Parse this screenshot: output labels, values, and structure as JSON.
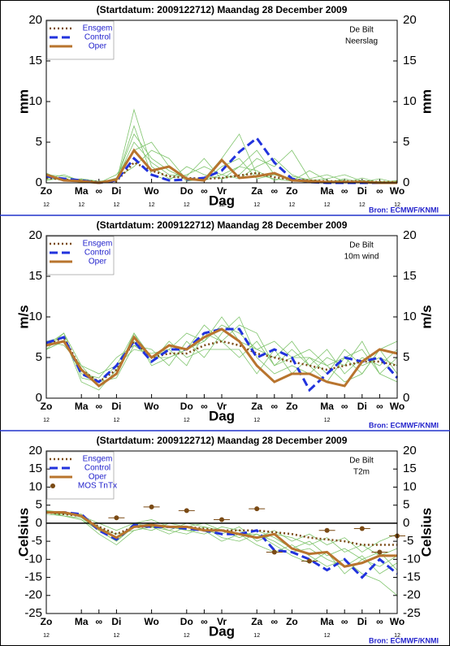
{
  "chart_data": [
    {
      "type": "line",
      "title": "(Startdatum: 2009122712)   Maandag   28 December  2009",
      "location": "De Bilt",
      "subtitle": "Neerslag",
      "ylabel": "mm",
      "xlabel": "Dag",
      "source": "Bron: ECMWF/KNMI",
      "ylim": [
        0,
        20
      ],
      "yticks": [
        0,
        5,
        10,
        15,
        20
      ],
      "xlim": [
        0,
        240
      ],
      "xticks": [
        {
          "value": 0,
          "label": "Zo"
        },
        {
          "value": 24,
          "label": "Ma"
        },
        {
          "value": 36,
          "label": "∞"
        },
        {
          "value": 48,
          "label": "Di"
        },
        {
          "value": 72,
          "label": "Wo"
        },
        {
          "value": 96,
          "label": "Do"
        },
        {
          "value": 108,
          "label": "∞"
        },
        {
          "value": 120,
          "label": "Vr"
        },
        {
          "value": 144,
          "label": "Za"
        },
        {
          "value": 156,
          "label": "∞"
        },
        {
          "value": 168,
          "label": "Zo"
        },
        {
          "value": 192,
          "label": "Ma"
        },
        {
          "value": 204,
          "label": "∞"
        },
        {
          "value": 216,
          "label": "Di"
        },
        {
          "value": 228,
          "label": "∞"
        },
        {
          "value": 240,
          "label": "Wo"
        }
      ],
      "xhourticks": [
        {
          "value": 0,
          "label": "12"
        },
        {
          "value": 24,
          "label": "12"
        },
        {
          "value": 48,
          "label": "12"
        },
        {
          "value": 72,
          "label": "12"
        },
        {
          "value": 96,
          "label": "12"
        },
        {
          "value": 120,
          "label": "12"
        },
        {
          "value": 144,
          "label": "12"
        },
        {
          "value": 168,
          "label": "12"
        },
        {
          "value": 192,
          "label": "12"
        },
        {
          "value": 216,
          "label": "12"
        },
        {
          "value": 240,
          "label": "12"
        }
      ],
      "x": [
        0,
        12,
        24,
        36,
        48,
        60,
        72,
        84,
        96,
        108,
        120,
        132,
        144,
        156,
        168,
        180,
        192,
        204,
        216,
        228,
        240
      ],
      "members": {
        "color": "#7fc46c",
        "values": [
          [
            0.5,
            1,
            0.2,
            0,
            0.5,
            6,
            3,
            1.5,
            0.5,
            0.3,
            1,
            2,
            4,
            1,
            0.5,
            0.3,
            0.5,
            1,
            0.2,
            0.1,
            0
          ],
          [
            1.2,
            0.3,
            0.5,
            0.2,
            0.2,
            9,
            2,
            0.5,
            1,
            2,
            1,
            0.5,
            2,
            3,
            1,
            0.2,
            0,
            0.5,
            0,
            0.2,
            0.1
          ],
          [
            0.3,
            0.6,
            0,
            0,
            1,
            4,
            5,
            2,
            0.2,
            0.5,
            3,
            6,
            1,
            0.5,
            0.2,
            1.5,
            0.3,
            0,
            0.6,
            0,
            0.3
          ],
          [
            0.8,
            0.2,
            0.4,
            0.1,
            0.3,
            7,
            1,
            0.3,
            2,
            1,
            0.5,
            1,
            3,
            2,
            4,
            0.5,
            1,
            0.2,
            0.1,
            0.5,
            0
          ],
          [
            0.4,
            0.5,
            0.1,
            0,
            0.6,
            2,
            4,
            3,
            0.4,
            0.2,
            2,
            3,
            0.5,
            1,
            0.3,
            0,
            0.2,
            0.3,
            0,
            0,
            0.2
          ],
          [
            1,
            0.8,
            0.3,
            0.2,
            0.4,
            5,
            2.5,
            1,
            0.8,
            3,
            0.4,
            2,
            1.5,
            0.3,
            0.8,
            0.4,
            0,
            0.1,
            0.3,
            0.1,
            0
          ]
        ]
      },
      "series": [
        {
          "name": "Ensgem",
          "color": "#7a4a14",
          "style": "dotted",
          "values": [
            0.6,
            0.4,
            0.3,
            0.1,
            0.2,
            2.5,
            1.5,
            0.8,
            0.6,
            0.5,
            0.6,
            0.9,
            1.2,
            0.7,
            0.4,
            0.3,
            0.2,
            0.2,
            0.2,
            0.1,
            0.1
          ]
        },
        {
          "name": "Control",
          "color": "#2233dd",
          "style": "dashed",
          "values": [
            0.8,
            0.5,
            0.3,
            0,
            0.3,
            3.0,
            1.0,
            0.3,
            0.4,
            0.6,
            1.5,
            3.8,
            5.5,
            2.5,
            0.5,
            0.1,
            0,
            0,
            0,
            0,
            0
          ]
        },
        {
          "name": "Oper",
          "color": "#b8742e",
          "style": "solid",
          "values": [
            1.0,
            0.3,
            0.2,
            0,
            0.4,
            4.0,
            1.5,
            2.0,
            0.5,
            0.3,
            2.8,
            0.6,
            0.8,
            1.2,
            0.3,
            0.2,
            0.1,
            0.1,
            0.1,
            0,
            0
          ]
        }
      ]
    },
    {
      "type": "line",
      "title": "(Startdatum: 2009122712)   Maandag   28 December  2009",
      "location": "De Bilt",
      "subtitle": "10m wind",
      "ylabel": "m/s",
      "xlabel": "Dag",
      "source": "Bron: ECMWF/KNMI",
      "ylim": [
        0,
        20
      ],
      "yticks": [
        0,
        5,
        10,
        15,
        20
      ],
      "xlim": [
        0,
        240
      ],
      "xticks": [
        {
          "value": 0,
          "label": "Zo"
        },
        {
          "value": 24,
          "label": "Ma"
        },
        {
          "value": 36,
          "label": "∞"
        },
        {
          "value": 48,
          "label": "Di"
        },
        {
          "value": 72,
          "label": "Wo"
        },
        {
          "value": 96,
          "label": "Do"
        },
        {
          "value": 108,
          "label": "∞"
        },
        {
          "value": 120,
          "label": "Vr"
        },
        {
          "value": 144,
          "label": "Za"
        },
        {
          "value": 156,
          "label": "∞"
        },
        {
          "value": 168,
          "label": "Zo"
        },
        {
          "value": 192,
          "label": "Ma"
        },
        {
          "value": 204,
          "label": "∞"
        },
        {
          "value": 216,
          "label": "Di"
        },
        {
          "value": 228,
          "label": "∞"
        },
        {
          "value": 240,
          "label": "Wo"
        }
      ],
      "xhourticks": [
        {
          "value": 0,
          "label": "12"
        },
        {
          "value": 48,
          "label": "12"
        },
        {
          "value": 96,
          "label": "12"
        },
        {
          "value": 144,
          "label": "12"
        },
        {
          "value": 192,
          "label": "12"
        }
      ],
      "x": [
        0,
        12,
        24,
        36,
        48,
        60,
        72,
        84,
        96,
        108,
        120,
        132,
        144,
        156,
        168,
        180,
        192,
        204,
        216,
        228,
        240
      ],
      "members": {
        "color": "#7fc46c",
        "values": [
          [
            6,
            8,
            2.5,
            2,
            4,
            6,
            5.5,
            6,
            8,
            7,
            9,
            8,
            6,
            7,
            5,
            6,
            4,
            5,
            3,
            6,
            3
          ],
          [
            7,
            6.5,
            4,
            1.5,
            3,
            8,
            4,
            5,
            6,
            9,
            7,
            5,
            7,
            4,
            6,
            4,
            6,
            3,
            5,
            4,
            6
          ],
          [
            6,
            7,
            3,
            2.5,
            5,
            6.5,
            6,
            4,
            7,
            5,
            8,
            10,
            5,
            3,
            4,
            3,
            5,
            4,
            7,
            3,
            5
          ],
          [
            7,
            7.5,
            2,
            1,
            3.5,
            7,
            4.5,
            7,
            5,
            6,
            6,
            6,
            3,
            6,
            3,
            5,
            3,
            6,
            4,
            5,
            4
          ],
          [
            6.5,
            8,
            4,
            3,
            4,
            8,
            5,
            5,
            6,
            7,
            10,
            7,
            6,
            5,
            7,
            4,
            2,
            5,
            6,
            3,
            2
          ],
          [
            6,
            7,
            3.5,
            2,
            2.5,
            6.5,
            5,
            6,
            4,
            8,
            7,
            9,
            8,
            4,
            5,
            5,
            4,
            2,
            3,
            6,
            7
          ]
        ]
      },
      "series": [
        {
          "name": "Ensgem",
          "color": "#7a4a14",
          "style": "dotted",
          "values": [
            6.5,
            7.5,
            3.5,
            2,
            3.5,
            7,
            5,
            5.5,
            5.5,
            6.5,
            7,
            6.5,
            5.5,
            5,
            4.5,
            4,
            3.5,
            4,
            4.5,
            4.5,
            4
          ]
        },
        {
          "name": "Control",
          "color": "#2233dd",
          "style": "dashed",
          "values": [
            6.8,
            7.5,
            3,
            2,
            4,
            7,
            4.5,
            6,
            6,
            8,
            8.5,
            8.5,
            5,
            6,
            5,
            1,
            3,
            5,
            4.5,
            5,
            2.5
          ]
        },
        {
          "name": "Oper",
          "color": "#b8742e",
          "style": "solid",
          "values": [
            6.5,
            7,
            3.5,
            1.5,
            3,
            7.5,
            5,
            6.5,
            6,
            7.5,
            8.5,
            7,
            4,
            2,
            3,
            3,
            2,
            1.5,
            4.5,
            6,
            5.5
          ]
        }
      ]
    },
    {
      "type": "line",
      "title": "(Startdatum: 2009122712)   Maandag   28 December  2009",
      "location": "De Bilt",
      "subtitle": "T2m",
      "ylabel": "Celsius",
      "xlabel": "Dag",
      "source": "Bron: ECMWF/KNMI",
      "ylim": [
        -25,
        20
      ],
      "yticks": [
        -25,
        -20,
        -15,
        -10,
        -5,
        0,
        5,
        10,
        15,
        20
      ],
      "xlim": [
        0,
        240
      ],
      "zero_line": true,
      "xticks": [
        {
          "value": 0,
          "label": "Zo"
        },
        {
          "value": 24,
          "label": "Ma"
        },
        {
          "value": 36,
          "label": "∞"
        },
        {
          "value": 48,
          "label": "Di"
        },
        {
          "value": 72,
          "label": "Wo"
        },
        {
          "value": 96,
          "label": "Do"
        },
        {
          "value": 108,
          "label": "∞"
        },
        {
          "value": 120,
          "label": "Vr"
        },
        {
          "value": 144,
          "label": "Za"
        },
        {
          "value": 156,
          "label": "∞"
        },
        {
          "value": 168,
          "label": "Zo"
        },
        {
          "value": 192,
          "label": "Ma"
        },
        {
          "value": 204,
          "label": "∞"
        },
        {
          "value": 216,
          "label": "Di"
        },
        {
          "value": 228,
          "label": "∞"
        },
        {
          "value": 240,
          "label": "Wo"
        }
      ],
      "xhourticks": [
        {
          "value": 0,
          "label": "12"
        },
        {
          "value": 48,
          "label": "12"
        },
        {
          "value": 96,
          "label": "12"
        },
        {
          "value": 144,
          "label": "12"
        },
        {
          "value": 192,
          "label": "12"
        },
        {
          "value": 240,
          "label": "12"
        }
      ],
      "x": [
        0,
        12,
        24,
        36,
        48,
        60,
        72,
        84,
        96,
        108,
        120,
        132,
        144,
        156,
        168,
        180,
        192,
        204,
        216,
        228,
        240
      ],
      "members": {
        "color": "#7fc46c",
        "values": [
          [
            3,
            2,
            1,
            -3,
            -6,
            -2,
            -1,
            -2,
            -3,
            -1,
            -4,
            -5,
            -3,
            -6,
            -9,
            -11,
            -8,
            -14,
            -10,
            -12,
            -9
          ],
          [
            3.5,
            3,
            2,
            0,
            -2,
            0,
            1,
            -1,
            -2,
            -3,
            -1,
            -2,
            -4,
            -2,
            -5,
            -3,
            -6,
            -4,
            -8,
            -5,
            -3
          ],
          [
            2.5,
            2,
            1.5,
            -2,
            -5,
            -1,
            -2,
            0,
            -1,
            -2,
            -5,
            -3,
            -6,
            -8,
            -6,
            -9,
            -12,
            -10,
            -14,
            -16,
            -20
          ],
          [
            3,
            2.5,
            2,
            -1,
            -4,
            -1,
            0,
            -2,
            0,
            -1,
            -2,
            -4,
            -2,
            -4,
            -7,
            -5,
            -9,
            -7,
            -10,
            -8,
            -13
          ],
          [
            3,
            3,
            2.5,
            -1.5,
            -3,
            -2,
            -1,
            -1,
            -2,
            -2,
            -3,
            -1,
            -5,
            -3,
            -4,
            -6,
            -4,
            -8,
            -6,
            -9,
            -7
          ],
          [
            3.5,
            2,
            1,
            -2,
            -5,
            0,
            -1,
            -3,
            -1,
            0,
            -2,
            -3,
            -3,
            -5,
            -8,
            -7,
            -10,
            -12,
            -9,
            -14,
            -11
          ]
        ]
      },
      "series": [
        {
          "name": "Ensgem",
          "color": "#7a4a14",
          "style": "dotted",
          "values": [
            3,
            2.5,
            2,
            -1,
            -3,
            -1,
            -1,
            -1,
            -1,
            -1.5,
            -2,
            -2,
            -2,
            -2.5,
            -3,
            -4,
            -4.5,
            -5,
            -6,
            -6,
            -6
          ]
        },
        {
          "name": "Control",
          "color": "#2233dd",
          "style": "dashed",
          "values": [
            3,
            3,
            2.5,
            -2,
            -4.5,
            -0.5,
            -1,
            -1,
            -1.5,
            -2,
            -3,
            -3,
            -2,
            -7.5,
            -8,
            -10,
            -13,
            -10,
            -15,
            -10,
            -14
          ]
        },
        {
          "name": "Oper",
          "color": "#b8742e",
          "style": "solid",
          "values": [
            3,
            3,
            2,
            -1.5,
            -4,
            -1,
            -0.5,
            -1,
            -1,
            -2,
            -2,
            -3,
            -4,
            -3,
            -7,
            -8.5,
            -8,
            -12,
            -11,
            -9,
            -9
          ]
        }
      ],
      "points": {
        "name": "MOS TnTx",
        "color": "#7a4a14",
        "x": [
          48,
          72,
          96,
          120,
          144,
          156,
          180,
          192,
          216,
          228,
          240
        ],
        "values": [
          1.5,
          4.5,
          3.5,
          1,
          4,
          -8,
          -10.5,
          -2,
          -1.5,
          -8,
          -3.5
        ]
      }
    }
  ]
}
